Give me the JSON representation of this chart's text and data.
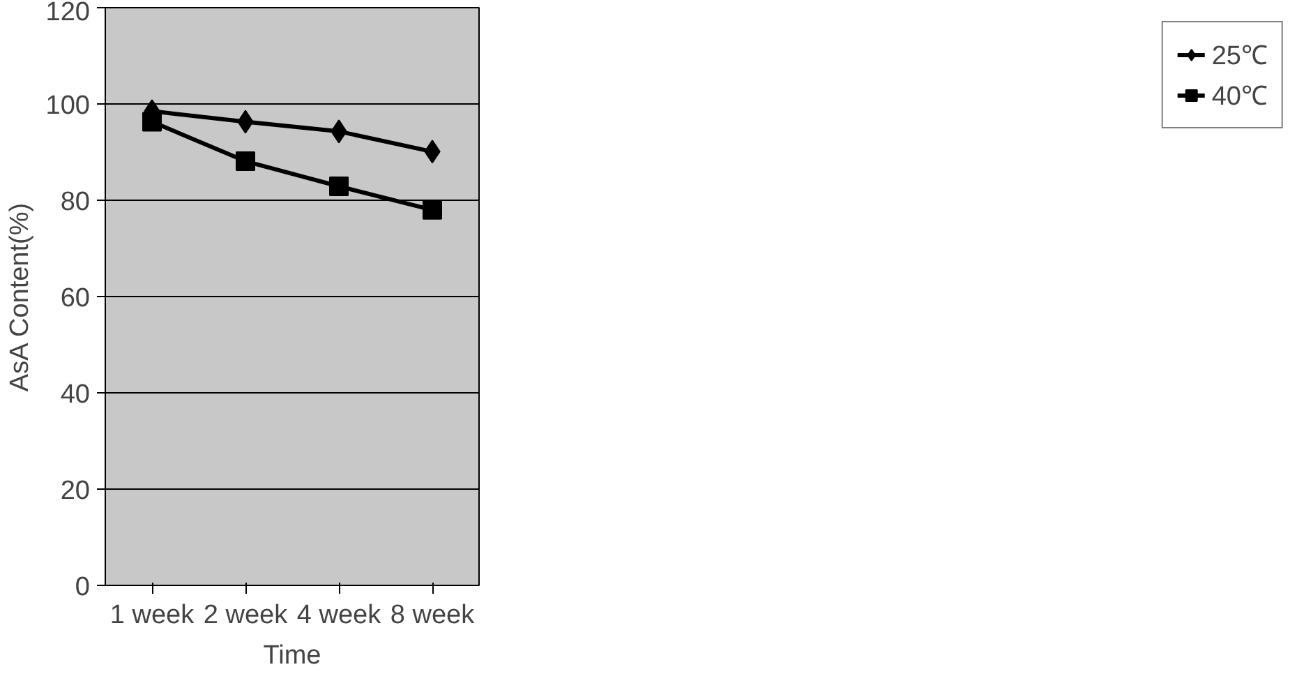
{
  "chart_data": {
    "type": "line",
    "xlabel": "Time",
    "ylabel": "AsA Content(%)",
    "categories": [
      "1 week",
      "2 week",
      "4 week",
      "8 week"
    ],
    "series": [
      {
        "name": "25℃",
        "color": "#000000",
        "marker": "diamond",
        "values": [
          98.5,
          96.3,
          94.3,
          90.1
        ]
      },
      {
        "name": "40℃",
        "color": "#000000",
        "marker": "square",
        "values": [
          96.3,
          88.1,
          82.9,
          78
        ]
      }
    ],
    "ylim": [
      0,
      120
    ],
    "yticks": [
      0,
      20,
      40,
      60,
      80,
      100,
      120
    ],
    "grid": "y",
    "legend": "right",
    "line_style": "solid"
  }
}
